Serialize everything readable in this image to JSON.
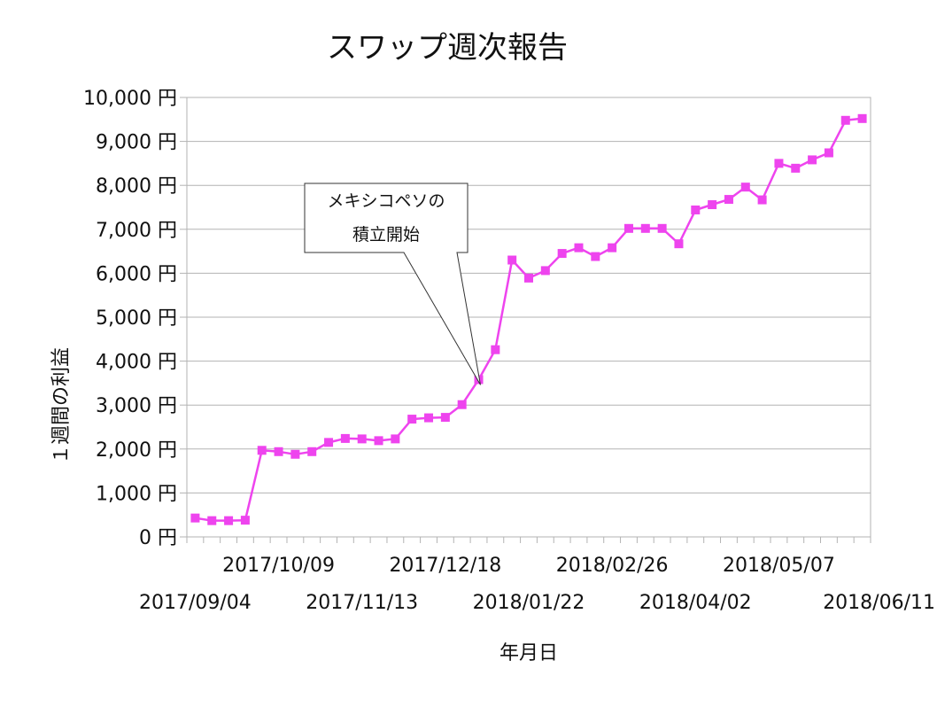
{
  "chart_data": {
    "type": "line",
    "title": "スワップ週次報告",
    "xlabel": "年月日",
    "ylabel": "１週間の利益",
    "ylim": [
      0,
      10000
    ],
    "y_ticks": [
      "0 円",
      "1,000 円",
      "2,000 円",
      "3,000 円",
      "4,000 円",
      "5,000 円",
      "6,000 円",
      "7,000 円",
      "8,000 円",
      "9,000 円",
      "10,000 円"
    ],
    "x_tick_labels_upper": [
      "2017/10/09",
      "2017/12/18",
      "2018/02/26",
      "2018/05/07"
    ],
    "x_tick_labels_lower": [
      "2017/09/04",
      "2017/11/13",
      "2018/01/22",
      "2018/04/02",
      "2018/06/11"
    ],
    "grid": true,
    "legend": false,
    "line_color": "#ee44ee",
    "annotation": {
      "lines": [
        "メキシコペソの",
        "積立開始"
      ],
      "target_date": "2018/01/01"
    },
    "series": [
      {
        "x": [
          "2017/09/04",
          "2017/09/11",
          "2017/09/18",
          "2017/09/25",
          "2017/10/02",
          "2017/10/09",
          "2017/10/16",
          "2017/10/23",
          "2017/10/30",
          "2017/11/06",
          "2017/11/13",
          "2017/11/20",
          "2017/11/27",
          "2017/12/04",
          "2017/12/11",
          "2017/12/18",
          "2017/12/25",
          "2018/01/01",
          "2018/01/08",
          "2018/01/15",
          "2018/01/22",
          "2018/01/29",
          "2018/02/05",
          "2018/02/12",
          "2018/02/19",
          "2018/02/26",
          "2018/03/05",
          "2018/03/12",
          "2018/03/19",
          "2018/03/26",
          "2018/04/02",
          "2018/04/09",
          "2018/04/16",
          "2018/04/23",
          "2018/04/30",
          "2018/05/07",
          "2018/05/14",
          "2018/05/21",
          "2018/05/28",
          "2018/06/04",
          "2018/06/11"
        ],
        "values": [
          430,
          370,
          370,
          380,
          1970,
          1940,
          1880,
          1940,
          2150,
          2240,
          2230,
          2190,
          2230,
          2680,
          2710,
          2720,
          3010,
          3580,
          4260,
          6300,
          5890,
          6060,
          6450,
          6580,
          6380,
          6580,
          7020,
          7020,
          7020,
          6670,
          7440,
          7560,
          7680,
          7960,
          7670,
          8500,
          8390,
          8580,
          8740,
          9480,
          9520
        ]
      }
    ]
  }
}
